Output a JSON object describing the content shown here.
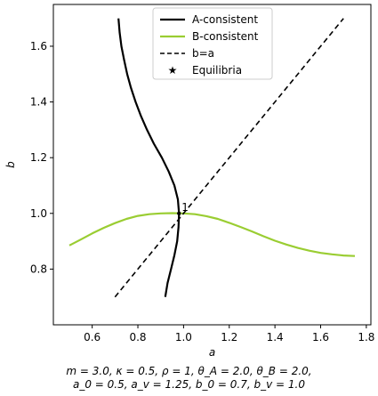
{
  "chart_data": {
    "type": "line",
    "xlabel": "a",
    "ylabel": "b",
    "xlim": [
      0.43,
      1.82
    ],
    "ylim": [
      0.6,
      1.75
    ],
    "x_ticks": [
      "0.6",
      "0.8",
      "1.0",
      "1.2",
      "1.4",
      "1.6",
      "1.8"
    ],
    "y_ticks": [
      "0.8",
      "1.0",
      "1.2",
      "1.4",
      "1.6"
    ],
    "legend_position": "top-center",
    "series": [
      {
        "name": "A-consistent",
        "color": "#000000",
        "style": "solid",
        "points": [
          [
            0.92,
            0.7
          ],
          [
            0.93,
            0.75
          ],
          [
            0.945,
            0.8
          ],
          [
            0.96,
            0.85
          ],
          [
            0.972,
            0.9
          ],
          [
            0.978,
            0.95
          ],
          [
            0.98,
            1.0
          ],
          [
            0.975,
            1.05
          ],
          [
            0.96,
            1.1
          ],
          [
            0.935,
            1.15
          ],
          [
            0.905,
            1.2
          ],
          [
            0.87,
            1.25
          ],
          [
            0.84,
            1.3
          ],
          [
            0.813,
            1.35
          ],
          [
            0.79,
            1.4
          ],
          [
            0.77,
            1.45
          ],
          [
            0.753,
            1.5
          ],
          [
            0.74,
            1.55
          ],
          [
            0.728,
            1.6
          ],
          [
            0.72,
            1.65
          ],
          [
            0.715,
            1.7
          ]
        ]
      },
      {
        "name": "B-consistent",
        "color": "#9acd32",
        "style": "solid",
        "points": [
          [
            0.5,
            0.885
          ],
          [
            0.55,
            0.906
          ],
          [
            0.6,
            0.928
          ],
          [
            0.65,
            0.948
          ],
          [
            0.7,
            0.965
          ],
          [
            0.75,
            0.98
          ],
          [
            0.8,
            0.991
          ],
          [
            0.85,
            0.997
          ],
          [
            0.9,
            1.0
          ],
          [
            0.95,
            1.001
          ],
          [
            1.0,
            1.0
          ],
          [
            1.05,
            0.997
          ],
          [
            1.1,
            0.99
          ],
          [
            1.15,
            0.98
          ],
          [
            1.2,
            0.966
          ],
          [
            1.25,
            0.951
          ],
          [
            1.3,
            0.935
          ],
          [
            1.35,
            0.918
          ],
          [
            1.4,
            0.902
          ],
          [
            1.45,
            0.888
          ],
          [
            1.5,
            0.876
          ],
          [
            1.55,
            0.866
          ],
          [
            1.6,
            0.858
          ],
          [
            1.65,
            0.853
          ],
          [
            1.7,
            0.849
          ],
          [
            1.75,
            0.847
          ]
        ]
      },
      {
        "name": "b=a",
        "color": "#000000",
        "style": "dashed",
        "points": [
          [
            0.7,
            0.7
          ],
          [
            1.7,
            1.7
          ]
        ]
      }
    ],
    "equilibria": {
      "name": "Equilibria",
      "points": [
        {
          "x": 0.98,
          "y": 1.0,
          "label": "1"
        }
      ]
    }
  },
  "caption": {
    "line1": "m = 3.0, κ = 0.5, ρ = 1, θ_A = 2.0, θ_B = 2.0,",
    "line2": "a_0 = 0.5, a_v = 1.25, b_0 = 0.7, b_v = 1.0"
  }
}
